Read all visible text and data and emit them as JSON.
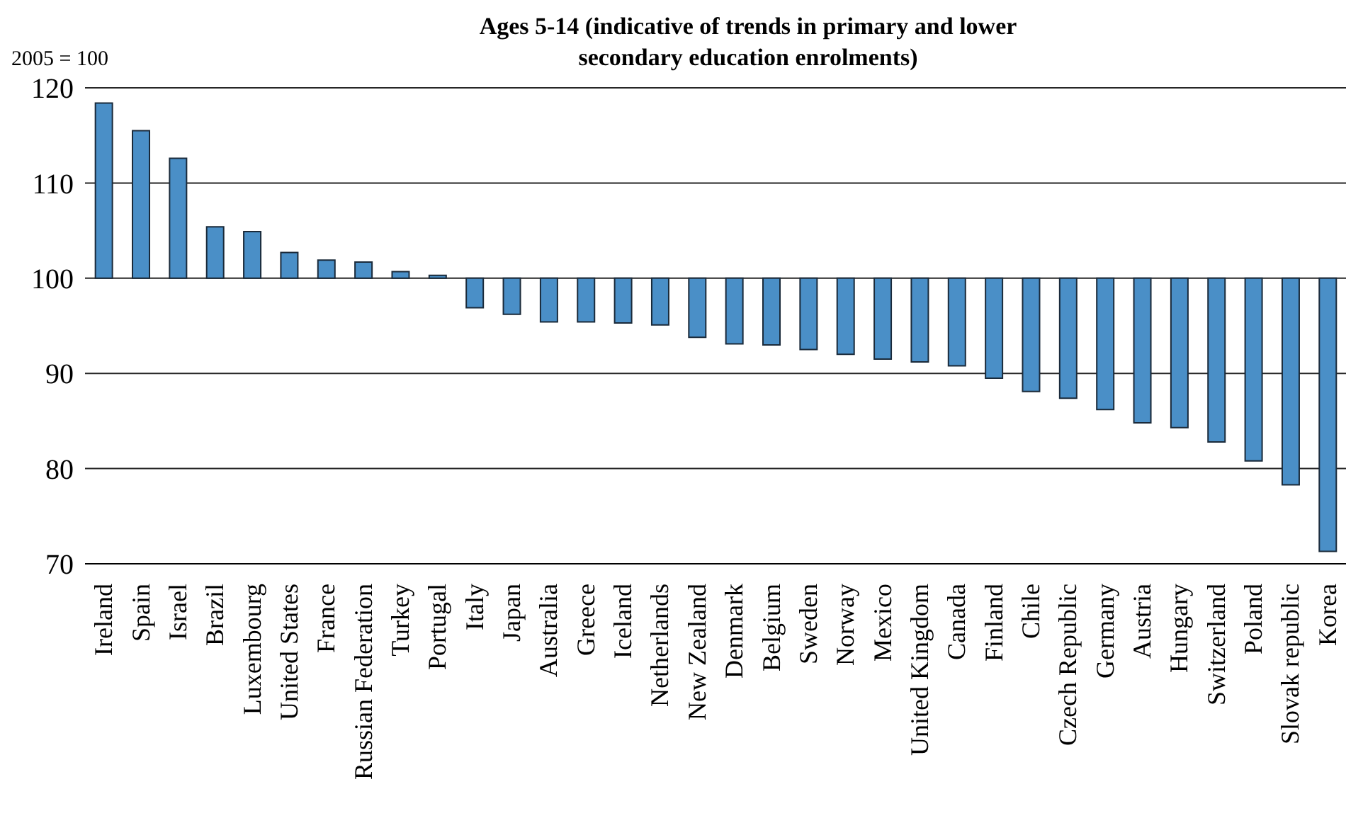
{
  "chart_data": {
    "type": "bar",
    "title": "Ages 5-14 (indicative of trends in primary and lower secondary education enrolments)",
    "ylabel": "2005 = 100",
    "categories": [
      "Ireland",
      "Spain",
      "Israel",
      "Brazil",
      "Luxembourg",
      "United States",
      "France",
      "Russian Federation",
      "Turkey",
      "Portugal",
      "Italy",
      "Japan",
      "Australia",
      "Greece",
      "Iceland",
      "Netherlands",
      "New Zealand",
      "Denmark",
      "Belgium",
      "Sweden",
      "Norway",
      "Mexico",
      "United Kingdom",
      "Canada",
      "Finland",
      "Chile",
      "Czech Republic",
      "Germany",
      "Austria",
      "Hungary",
      "Switzerland",
      "Poland",
      "Slovak republic",
      "Korea"
    ],
    "base": [
      100,
      100,
      100,
      100,
      100,
      100,
      100,
      100,
      100,
      100,
      100,
      100,
      100,
      100,
      100,
      100,
      100,
      100,
      100,
      100,
      100,
      100,
      100,
      100,
      100,
      100,
      100,
      100,
      100,
      100,
      100,
      100,
      100,
      100
    ],
    "values": [
      18.4,
      15.5,
      12.6,
      5.4,
      4.9,
      2.7,
      1.9,
      1.7,
      0.7,
      0.3,
      -3.1,
      -3.8,
      -4.6,
      -4.6,
      -4.7,
      -4.9,
      -6.2,
      -6.9,
      -7.0,
      -7.5,
      -8.0,
      -8.5,
      -8.8,
      -9.2,
      -10.5,
      -11.9,
      -12.6,
      -13.8,
      -15.2,
      -15.7,
      -17.2,
      -19.2,
      -21.7,
      -28.7
    ],
    "color": "#4a8fc7",
    "ylim": [
      70,
      120
    ],
    "yticks": [
      70,
      80,
      90,
      100,
      110,
      120
    ],
    "grid": "y"
  }
}
